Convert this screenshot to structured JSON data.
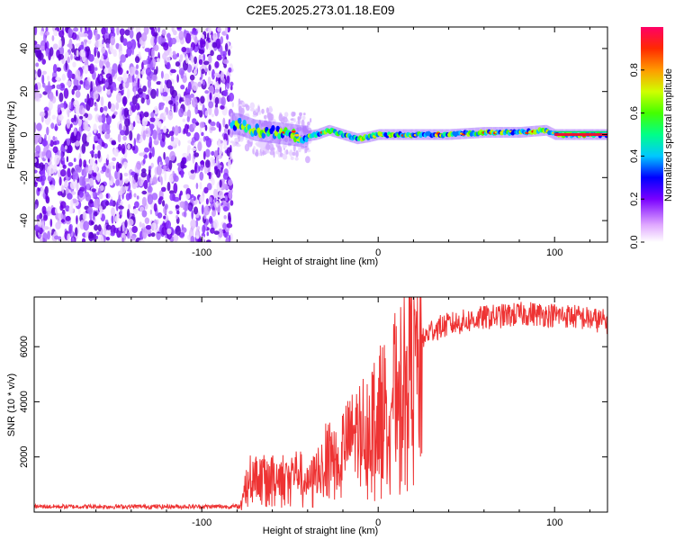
{
  "title": "C2E5.2025.273.01.18.E09",
  "chart_data": [
    {
      "type": "heatmap",
      "name": "spectrogram",
      "xlabel": "Height of straight line (km)",
      "ylabel": "Frequency (Hz)",
      "xlim": [
        -195,
        130
      ],
      "ylim": [
        -50,
        50
      ],
      "x_ticks": [
        -100,
        0,
        100
      ],
      "y_ticks": [
        -40,
        -20,
        0,
        20,
        40
      ],
      "noise_region_x": [
        -195,
        -83
      ],
      "signal_start_x": -83,
      "signal_trace": [
        {
          "x": -80,
          "freq": 5
        },
        {
          "x": -70,
          "freq": 2
        },
        {
          "x": -60,
          "freq": 1
        },
        {
          "x": -50,
          "freq": 0
        },
        {
          "x": -42,
          "freq": -1
        },
        {
          "x": -35,
          "freq": 0
        },
        {
          "x": -28,
          "freq": 2
        },
        {
          "x": -20,
          "freq": 0
        },
        {
          "x": -12,
          "freq": -2
        },
        {
          "x": -5,
          "freq": -1
        },
        {
          "x": 0,
          "freq": 0
        },
        {
          "x": 20,
          "freq": 0
        },
        {
          "x": 40,
          "freq": 0
        },
        {
          "x": 60,
          "freq": 1
        },
        {
          "x": 80,
          "freq": 1
        },
        {
          "x": 95,
          "freq": 2
        },
        {
          "x": 100,
          "freq": 0
        },
        {
          "x": 130,
          "freq": 0
        }
      ]
    },
    {
      "type": "colorbar",
      "name": "amplitude-colorbar",
      "label": "Normalized spectral amplitude",
      "range": [
        0,
        1
      ],
      "ticks": [
        0.0,
        0.2,
        0.4,
        0.6,
        0.8
      ]
    },
    {
      "type": "line",
      "name": "snr",
      "xlabel": "Height of straight line (km)",
      "ylabel": "SNR (10 * v/v)",
      "xlim": [
        -195,
        130
      ],
      "ylim": [
        0,
        7800
      ],
      "x_ticks": [
        -100,
        0,
        100
      ],
      "y_ticks": [
        2000,
        4000,
        6000
      ],
      "color": "#ee3333",
      "envelope": [
        {
          "x": -195,
          "y": 200
        },
        {
          "x": -78,
          "y": 200
        },
        {
          "x": -74,
          "y": 1300
        },
        {
          "x": -60,
          "y": 1300
        },
        {
          "x": -45,
          "y": 1500
        },
        {
          "x": -40,
          "y": 1000
        },
        {
          "x": -35,
          "y": 1500
        },
        {
          "x": -30,
          "y": 2000
        },
        {
          "x": -20,
          "y": 2400
        },
        {
          "x": -10,
          "y": 3100
        },
        {
          "x": 0,
          "y": 3700
        },
        {
          "x": 10,
          "y": 4600
        },
        {
          "x": 20,
          "y": 5800
        },
        {
          "x": 30,
          "y": 6600
        },
        {
          "x": 40,
          "y": 6800
        },
        {
          "x": 60,
          "y": 7050
        },
        {
          "x": 85,
          "y": 7200
        },
        {
          "x": 110,
          "y": 7100
        },
        {
          "x": 130,
          "y": 6900
        }
      ]
    }
  ]
}
